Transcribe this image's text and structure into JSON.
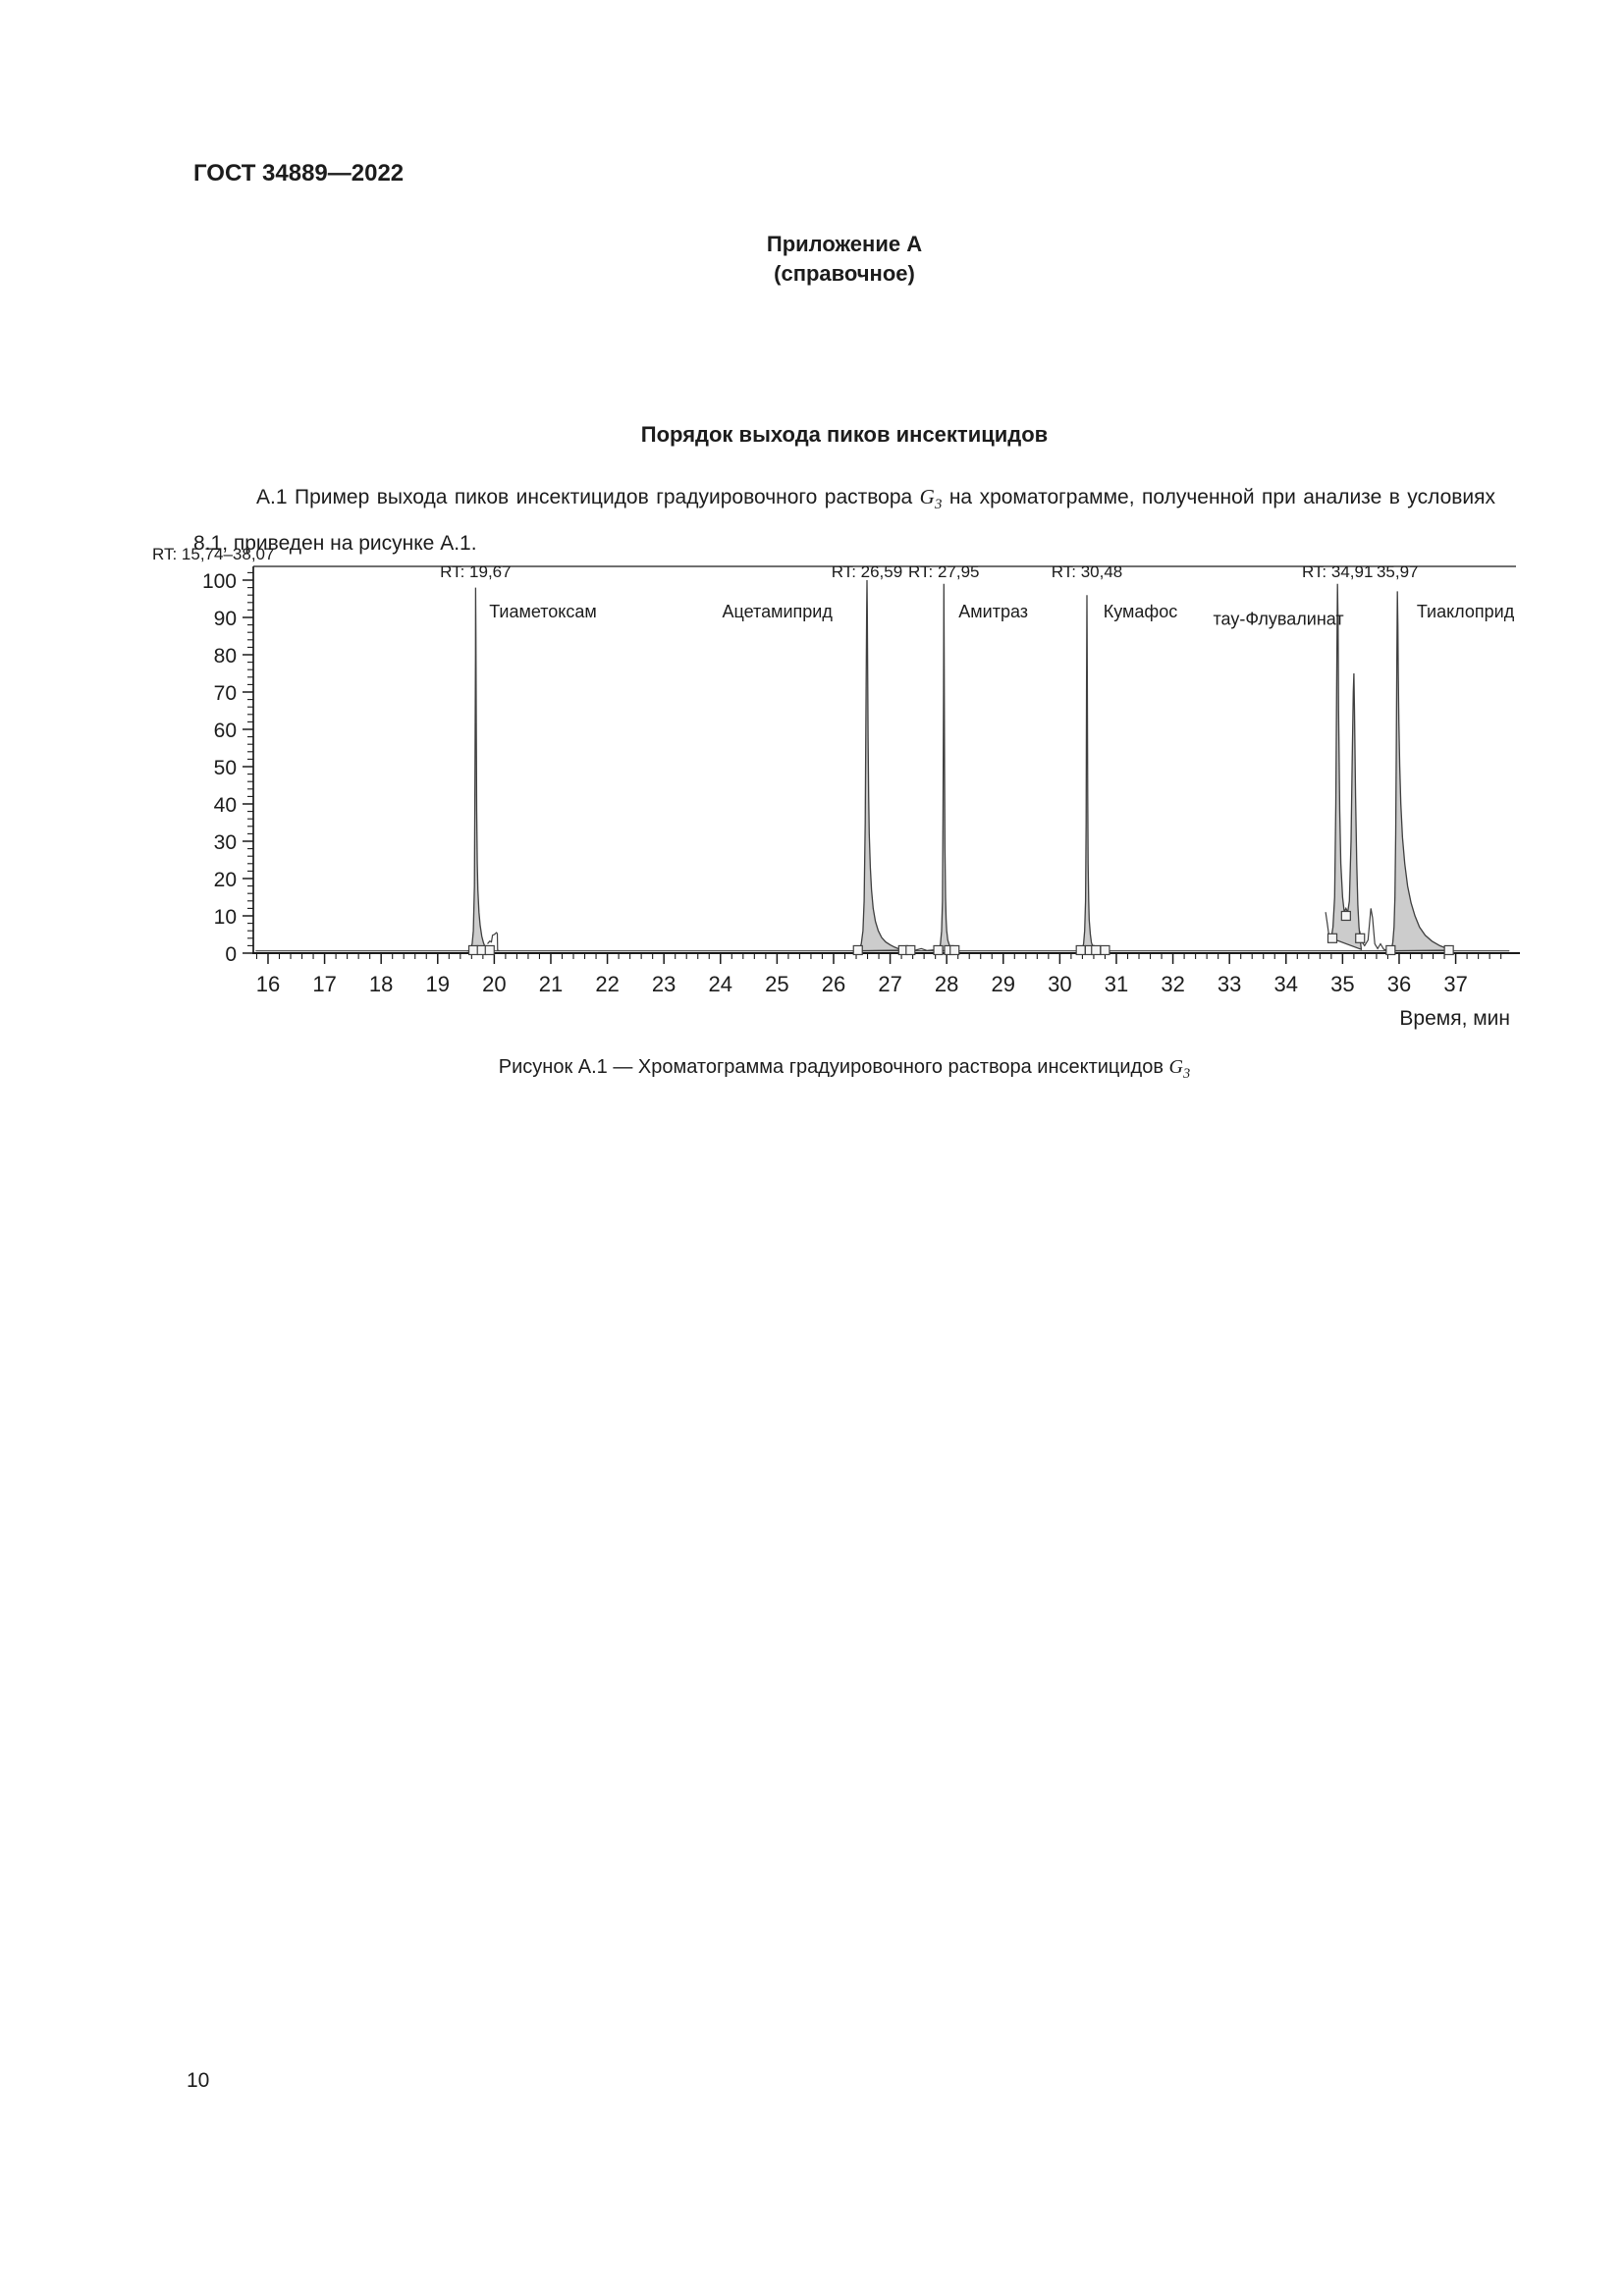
{
  "page": {
    "doc_code": "ГОСТ 34889—2022",
    "appendix_title": "Приложение А",
    "appendix_subtitle": "(справочное)",
    "section_title": "Порядок выхода пиков инсектицидов",
    "paragraph": {
      "before": "А.1 Пример выхода пиков инсектицидов градуировочного раствора ",
      "g": "G",
      "g_sub": "3",
      "after": " на хроматограмме, полученной при анализе в условиях 8.1, приведен на рисунке А.1."
    },
    "caption": {
      "before": "Рисунок А.1 — Хроматограмма градуировочного раствора инсектицидов ",
      "g": "G",
      "g_sub": "3"
    },
    "page_number": "10"
  },
  "colors": {
    "text": "#1c1c1c",
    "axis": "#1a1a1a",
    "peak_fill": "#cccccc",
    "peak_stroke": "#3f3f3f",
    "marker_fill": "#f5f5f5"
  },
  "chart_data": {
    "type": "area",
    "subtype": "chromatogram",
    "range_label": "RT: 15,74–38,07",
    "xlabel": "Время, мин",
    "x_range": [
      15.74,
      38.07
    ],
    "y_range": [
      0,
      100
    ],
    "grid": false,
    "legend": false,
    "x_major_ticks": [
      16,
      17,
      18,
      19,
      20,
      21,
      22,
      23,
      24,
      25,
      26,
      27,
      28,
      29,
      30,
      31,
      32,
      33,
      34,
      35,
      36,
      37
    ],
    "x_minor_step": 0.2,
    "y_major_ticks": [
      0,
      10,
      20,
      30,
      40,
      50,
      60,
      70,
      80,
      90,
      100
    ],
    "y_minor_step": 2,
    "baseline_level": 0.6,
    "peaks": [
      {
        "rt": 19.67,
        "height": 98,
        "name": "Тиаметоксам",
        "rt_label": "RT: 19,67",
        "name_anchor_t": 19.91,
        "name_v": 90,
        "points": [
          [
            19.54,
            0.6
          ],
          [
            19.58,
            1.2
          ],
          [
            19.61,
            2.5
          ],
          [
            19.63,
            6
          ],
          [
            19.65,
            18
          ],
          [
            19.66,
            50
          ],
          [
            19.668,
            80
          ],
          [
            19.67,
            98
          ],
          [
            19.676,
            85
          ],
          [
            19.682,
            60
          ],
          [
            19.69,
            38
          ],
          [
            19.7,
            24
          ],
          [
            19.71,
            17
          ],
          [
            19.73,
            11
          ],
          [
            19.75,
            7.5
          ],
          [
            19.78,
            4.5
          ],
          [
            19.81,
            2.8
          ],
          [
            19.84,
            1.5
          ],
          [
            19.87,
            0.8
          ]
        ]
      },
      {
        "rt": 26.59,
        "height": 100,
        "name": "Ацетамиприд",
        "rt_label": "RT: 26,59",
        "name_anchor_t": 24.03,
        "name_v": 90,
        "points": [
          [
            26.42,
            0.6
          ],
          [
            26.46,
            1.2
          ],
          [
            26.49,
            2.5
          ],
          [
            26.52,
            6
          ],
          [
            26.54,
            14
          ],
          [
            26.56,
            35
          ],
          [
            26.575,
            70
          ],
          [
            26.585,
            92
          ],
          [
            26.59,
            100
          ],
          [
            26.596,
            92
          ],
          [
            26.603,
            75
          ],
          [
            26.61,
            58
          ],
          [
            26.62,
            42
          ],
          [
            26.63,
            32
          ],
          [
            26.65,
            23
          ],
          [
            26.67,
            17
          ],
          [
            26.7,
            12
          ],
          [
            26.74,
            8.5
          ],
          [
            26.79,
            6
          ],
          [
            26.85,
            4.2
          ],
          [
            26.92,
            3
          ],
          [
            27.0,
            2.2
          ],
          [
            27.08,
            1.6
          ],
          [
            27.16,
            1.1
          ],
          [
            27.22,
            0.8
          ]
        ]
      },
      {
        "rt": 27.95,
        "height": 99,
        "name": "Амитраз",
        "rt_label": "RT: 27,95",
        "name_anchor_t": 28.21,
        "name_v": 90,
        "points": [
          [
            27.84,
            0.6
          ],
          [
            27.87,
            1.2
          ],
          [
            27.89,
            2.5
          ],
          [
            27.91,
            6
          ],
          [
            27.925,
            14
          ],
          [
            27.935,
            35
          ],
          [
            27.945,
            70
          ],
          [
            27.95,
            99
          ],
          [
            27.955,
            80
          ],
          [
            27.962,
            50
          ],
          [
            27.97,
            28
          ],
          [
            27.98,
            15
          ],
          [
            27.99,
            9
          ],
          [
            28.0,
            6
          ],
          [
            28.02,
            3.5
          ],
          [
            28.05,
            2
          ],
          [
            28.09,
            1.2
          ],
          [
            28.13,
            0.7
          ]
        ]
      },
      {
        "rt": 30.48,
        "height": 96,
        "name": "Кумафос",
        "rt_label": "RT: 30,48",
        "name_anchor_t": 30.77,
        "name_v": 90,
        "points": [
          [
            30.37,
            0.6
          ],
          [
            30.4,
            1.2
          ],
          [
            30.42,
            2.5
          ],
          [
            30.44,
            6
          ],
          [
            30.455,
            14
          ],
          [
            30.465,
            35
          ],
          [
            30.473,
            70
          ],
          [
            30.48,
            96
          ],
          [
            30.486,
            72
          ],
          [
            30.493,
            42
          ],
          [
            30.5,
            24
          ],
          [
            30.51,
            14
          ],
          [
            30.52,
            9
          ],
          [
            30.54,
            5
          ],
          [
            30.56,
            2.8
          ],
          [
            30.59,
            1.5
          ],
          [
            30.62,
            0.8
          ]
        ]
      },
      {
        "rt": 34.91,
        "height": 99,
        "name": "тау-Флувалинат",
        "rt_label": "RT: 34,91",
        "name_anchor_t": 32.71,
        "name_v": 88,
        "secondary_rt": 35.2,
        "secondary_height": 75,
        "points": [
          [
            34.8,
            4
          ],
          [
            34.83,
            7
          ],
          [
            34.86,
            15
          ],
          [
            34.88,
            40
          ],
          [
            34.9,
            80
          ],
          [
            34.91,
            99
          ],
          [
            34.92,
            88
          ],
          [
            34.93,
            65
          ],
          [
            34.95,
            38
          ],
          [
            34.97,
            24
          ],
          [
            35.0,
            15
          ],
          [
            35.03,
            11
          ],
          [
            35.06,
            12
          ],
          [
            35.09,
            11
          ],
          [
            35.12,
            14
          ],
          [
            35.15,
            30
          ],
          [
            35.17,
            52
          ],
          [
            35.19,
            70
          ],
          [
            35.2,
            75
          ],
          [
            35.21,
            65
          ],
          [
            35.23,
            42
          ],
          [
            35.25,
            24
          ],
          [
            35.27,
            13
          ],
          [
            35.29,
            7
          ],
          [
            35.31,
            4
          ],
          [
            35.33,
            1
          ]
        ]
      },
      {
        "rt": 35.97,
        "height": 97,
        "name": "Тиаклоприд",
        "rt_label": "35,97",
        "name_anchor_t": 36.31,
        "name_v": 90,
        "points": [
          [
            35.84,
            0.6
          ],
          [
            35.87,
            1.3
          ],
          [
            35.89,
            3
          ],
          [
            35.91,
            7
          ],
          [
            35.925,
            15
          ],
          [
            35.94,
            32
          ],
          [
            35.95,
            55
          ],
          [
            35.96,
            80
          ],
          [
            35.97,
            97
          ],
          [
            35.978,
            88
          ],
          [
            35.985,
            75
          ],
          [
            35.995,
            62
          ],
          [
            36.01,
            50
          ],
          [
            36.03,
            40
          ],
          [
            36.06,
            31
          ],
          [
            36.1,
            24
          ],
          [
            36.15,
            18
          ],
          [
            36.21,
            13.5
          ],
          [
            36.28,
            10
          ],
          [
            36.36,
            7
          ],
          [
            36.46,
            4.8
          ],
          [
            36.58,
            3.2
          ],
          [
            36.72,
            2
          ],
          [
            36.85,
            1.2
          ],
          [
            36.95,
            0.8
          ]
        ]
      }
    ],
    "overlay_traces": [
      {
        "name": "bump-after-thiamethoxam",
        "points": [
          [
            19.88,
            2.5
          ],
          [
            19.92,
            3.2
          ],
          [
            19.95,
            3.0
          ],
          [
            19.97,
            4.8
          ],
          [
            20.0,
            5.0
          ],
          [
            20.04,
            5.5
          ],
          [
            20.055,
            5.2
          ],
          [
            20.06,
            0.8
          ],
          [
            20.09,
            0.6
          ]
        ]
      },
      {
        "name": "wiggle-after-acetamiprid",
        "points": [
          [
            27.2,
            1.0
          ],
          [
            27.28,
            0.7
          ],
          [
            27.36,
            1.4
          ],
          [
            27.45,
            0.8
          ],
          [
            27.55,
            1.2
          ],
          [
            27.65,
            0.7
          ],
          [
            27.78,
            0.9
          ],
          [
            27.84,
            0.6
          ]
        ]
      },
      {
        "name": "bump-after-coumaphos",
        "points": [
          [
            30.55,
            0.8
          ],
          [
            30.6,
            2.0
          ],
          [
            30.66,
            0.7
          ],
          [
            30.73,
            1.3
          ],
          [
            30.8,
            0.6
          ]
        ]
      },
      {
        "name": "hook-before-tau-fluvalinate",
        "points": [
          [
            34.7,
            11
          ],
          [
            34.73,
            8
          ],
          [
            34.77,
            3.5
          ],
          [
            34.8,
            4.5
          ]
        ]
      },
      {
        "name": "wiggle-after-tau-fluvalinate",
        "points": [
          [
            35.3,
            6
          ],
          [
            35.34,
            3
          ],
          [
            35.39,
            2
          ],
          [
            35.45,
            3.5
          ],
          [
            35.5,
            12
          ],
          [
            35.53,
            9.5
          ],
          [
            35.57,
            2.5
          ],
          [
            35.62,
            1.2
          ],
          [
            35.67,
            2.5
          ],
          [
            35.73,
            1.0
          ],
          [
            35.8,
            0.8
          ]
        ]
      }
    ],
    "integration_markers": [
      [
        19.63,
        0.8
      ],
      [
        19.78,
        0.8
      ],
      [
        19.92,
        0.8
      ],
      [
        26.43,
        0.8
      ],
      [
        27.23,
        0.8
      ],
      [
        27.36,
        0.8
      ],
      [
        27.85,
        0.8
      ],
      [
        28.04,
        0.8
      ],
      [
        28.14,
        0.8
      ],
      [
        30.37,
        0.8
      ],
      [
        30.53,
        0.8
      ],
      [
        30.64,
        0.8
      ],
      [
        30.8,
        0.8
      ],
      [
        34.82,
        4
      ],
      [
        35.06,
        10
      ],
      [
        35.31,
        4
      ],
      [
        35.85,
        0.8
      ],
      [
        36.88,
        0.8
      ]
    ]
  }
}
